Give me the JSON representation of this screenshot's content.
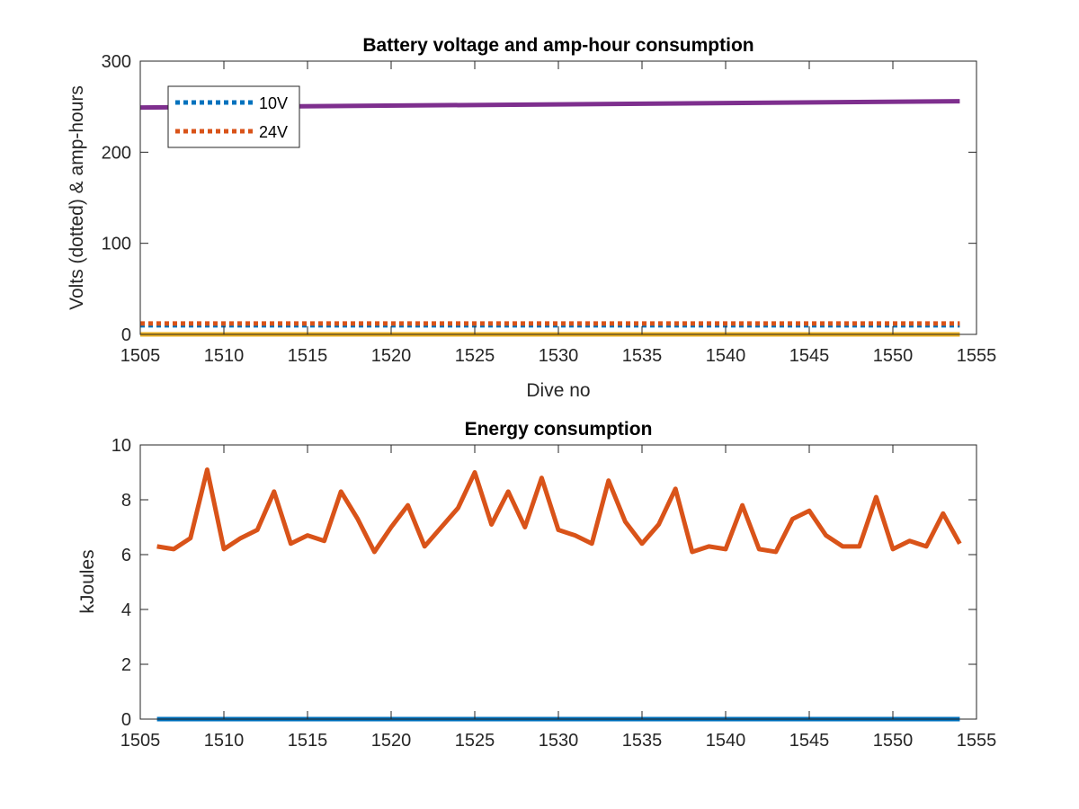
{
  "chart_data": [
    {
      "type": "line",
      "title": "Battery voltage and amp-hour consumption",
      "xlabel": "Dive no",
      "ylabel": "Volts (dotted) & amp-hours",
      "xlim": [
        1505,
        1555
      ],
      "ylim": [
        0,
        300
      ],
      "xticks": [
        1505,
        1510,
        1515,
        1520,
        1525,
        1530,
        1535,
        1540,
        1545,
        1550,
        1555
      ],
      "yticks": [
        0,
        100,
        200,
        300
      ],
      "legend": {
        "placement": "top-left",
        "entries": [
          "10V",
          "24V"
        ]
      },
      "series": [
        {
          "name": "10V",
          "style": "dotted",
          "color": "#0072BD",
          "x": [
            1505,
            1554
          ],
          "y": [
            10,
            10
          ]
        },
        {
          "name": "24V",
          "style": "dotted",
          "color": "#D95319",
          "x": [
            1505,
            1554
          ],
          "y": [
            12,
            12
          ]
        },
        {
          "style": "solid",
          "color": "#EDB120",
          "x": [
            1505,
            1554
          ],
          "y": [
            0,
            0
          ]
        },
        {
          "style": "solid",
          "color": "#7E2F8E",
          "x": [
            1505,
            1554
          ],
          "y": [
            249,
            256
          ]
        }
      ]
    },
    {
      "type": "line",
      "title": "Energy consumption",
      "xlabel": "",
      "ylabel": "kJoules",
      "xlim": [
        1505,
        1555
      ],
      "ylim": [
        0,
        10
      ],
      "xticks": [
        1505,
        1510,
        1515,
        1520,
        1525,
        1530,
        1535,
        1540,
        1545,
        1550,
        1555
      ],
      "yticks": [
        0,
        2,
        4,
        6,
        8,
        10
      ],
      "series": [
        {
          "style": "solid",
          "color": "#D95319",
          "x": [
            1506,
            1507,
            1508,
            1509,
            1510,
            1511,
            1512,
            1513,
            1514,
            1515,
            1516,
            1517,
            1518,
            1519,
            1520,
            1521,
            1522,
            1523,
            1524,
            1525,
            1526,
            1527,
            1528,
            1529,
            1530,
            1531,
            1532,
            1533,
            1534,
            1535,
            1536,
            1537,
            1538,
            1539,
            1540,
            1541,
            1542,
            1543,
            1544,
            1545,
            1546,
            1547,
            1548,
            1549,
            1550,
            1551,
            1552,
            1553,
            1554
          ],
          "y": [
            6.3,
            6.2,
            6.6,
            9.1,
            6.2,
            6.6,
            6.9,
            8.3,
            6.4,
            6.7,
            6.5,
            8.3,
            7.3,
            6.1,
            7.0,
            7.8,
            6.3,
            7.0,
            7.7,
            9.0,
            7.1,
            8.3,
            7.0,
            8.8,
            6.9,
            6.7,
            6.4,
            8.7,
            7.2,
            6.4,
            7.1,
            8.4,
            6.1,
            6.3,
            6.2,
            7.8,
            6.2,
            6.1,
            7.3,
            7.6,
            6.7,
            6.3,
            6.3,
            8.1,
            6.2,
            6.5,
            6.3,
            7.5,
            6.4
          ]
        },
        {
          "style": "solid",
          "color": "#0072BD",
          "x": [
            1506,
            1554
          ],
          "y": [
            0,
            0
          ]
        }
      ]
    }
  ]
}
